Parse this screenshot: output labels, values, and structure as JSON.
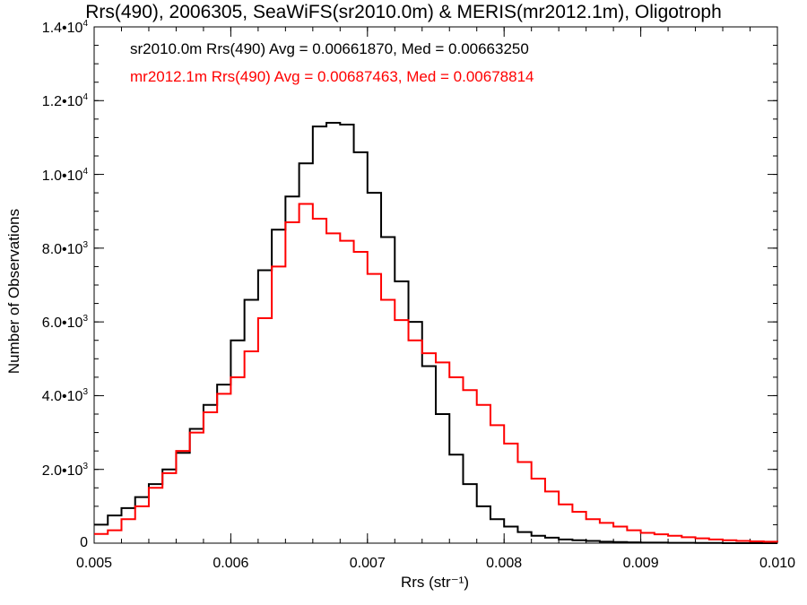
{
  "chart_data": {
    "type": "line",
    "title": "Rrs(490), 2006305, SeaWiFS(sr2010.0m) & MERIS(mr2012.1m), Oligotroph",
    "xlabel": "Rrs (str⁻¹)",
    "ylabel": "Number of Observations",
    "xlim": [
      0.005,
      0.01
    ],
    "ylim": [
      0,
      14000
    ],
    "x_ticks": [
      0.005,
      0.006,
      0.007,
      0.008,
      0.009,
      0.01
    ],
    "x_tick_labels": [
      "0.005",
      "0.006",
      "0.007",
      "0.008",
      "0.009",
      "0.010"
    ],
    "y_ticks": [
      0,
      2000,
      4000,
      6000,
      8000,
      10000,
      12000,
      14000
    ],
    "y_tick_labels": [
      {
        "mantissa": "0",
        "exp": ""
      },
      {
        "mantissa": "2.0•10",
        "exp": "3"
      },
      {
        "mantissa": "4.0•10",
        "exp": "3"
      },
      {
        "mantissa": "6.0•10",
        "exp": "3"
      },
      {
        "mantissa": "8.0•10",
        "exp": "3"
      },
      {
        "mantissa": "1.0•10",
        "exp": "4"
      },
      {
        "mantissa": "1.2•10",
        "exp": "4"
      },
      {
        "mantissa": "1.4•10",
        "exp": "4"
      }
    ],
    "grid": false,
    "legend": [
      {
        "text": "sr2010.0m Rrs(490) Avg = 0.00661870, Med = 0.00663250",
        "color": "#000000"
      },
      {
        "text": "mr2012.1m Rrs(490) Avg = 0.00687463, Med = 0.00678814",
        "color": "#ff0000"
      }
    ],
    "series": [
      {
        "color": "#000000",
        "x": [
          0.005,
          0.0051,
          0.0052,
          0.0053,
          0.0054,
          0.0055,
          0.0056,
          0.0057,
          0.0058,
          0.0059,
          0.006,
          0.0061,
          0.0062,
          0.0063,
          0.0064,
          0.0065,
          0.0066,
          0.0067,
          0.0068,
          0.0069,
          0.007,
          0.0071,
          0.0072,
          0.0073,
          0.0074,
          0.0075,
          0.0076,
          0.0077,
          0.0078,
          0.0079,
          0.008,
          0.0081,
          0.0082,
          0.0083,
          0.0084,
          0.0085,
          0.0086,
          0.0087,
          0.0088,
          0.0089,
          0.009,
          0.0092,
          0.0094,
          0.0096,
          0.0098,
          0.01
        ],
        "y": [
          500,
          750,
          950,
          1250,
          1600,
          2000,
          2450,
          3100,
          3750,
          4300,
          5500,
          6600,
          7400,
          8500,
          9400,
          10300,
          11300,
          11400,
          11350,
          10600,
          9500,
          8300,
          7100,
          6000,
          4800,
          3500,
          2400,
          1600,
          1000,
          650,
          450,
          300,
          200,
          150,
          100,
          80,
          60,
          40,
          30,
          20,
          15,
          10,
          5,
          0,
          0,
          0
        ]
      },
      {
        "color": "#ff0000",
        "x": [
          0.005,
          0.0051,
          0.0052,
          0.0053,
          0.0054,
          0.0055,
          0.0056,
          0.0057,
          0.0058,
          0.0059,
          0.006,
          0.0061,
          0.0062,
          0.0063,
          0.0064,
          0.0065,
          0.0066,
          0.0067,
          0.0068,
          0.0069,
          0.007,
          0.0071,
          0.0072,
          0.0073,
          0.0074,
          0.0075,
          0.0076,
          0.0077,
          0.0078,
          0.0079,
          0.008,
          0.0081,
          0.0082,
          0.0083,
          0.0084,
          0.0085,
          0.0086,
          0.0087,
          0.0088,
          0.0089,
          0.009,
          0.0091,
          0.0092,
          0.0093,
          0.0094,
          0.0095,
          0.0096,
          0.0097,
          0.0098,
          0.0099,
          0.01
        ],
        "y": [
          250,
          350,
          650,
          1000,
          1500,
          1900,
          2500,
          3000,
          3550,
          4050,
          4500,
          5200,
          6100,
          7500,
          8700,
          9200,
          8800,
          8400,
          8200,
          7900,
          7300,
          6600,
          6050,
          5500,
          5150,
          4900,
          4500,
          4150,
          3750,
          3200,
          2700,
          2200,
          1750,
          1400,
          1050,
          850,
          650,
          550,
          450,
          350,
          280,
          240,
          200,
          160,
          130,
          100,
          80,
          60,
          50,
          40,
          30
        ]
      }
    ]
  }
}
